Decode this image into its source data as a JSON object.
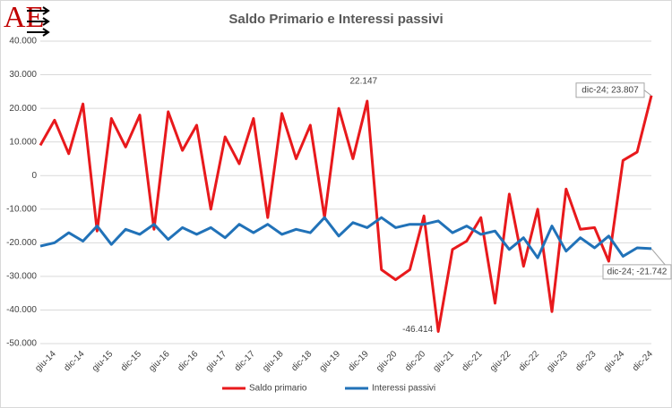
{
  "chart_data": {
    "type": "line",
    "title": "Saldo Primario e Interessi passivi",
    "logo": "AE",
    "categories": [
      null,
      "giu-14",
      null,
      "dic-14",
      null,
      "giu-15",
      null,
      "dic-15",
      null,
      "giu-16",
      null,
      "dic-16",
      null,
      "giu-17",
      null,
      "dic-17",
      null,
      "giu-18",
      null,
      "dic-18",
      null,
      "giu-19",
      null,
      "dic-19",
      null,
      "giu-20",
      null,
      "dic-20",
      null,
      "giu-21",
      null,
      "dic-21",
      null,
      "giu-22",
      null,
      "dic-22",
      null,
      "giu-23",
      null,
      "dic-23",
      null,
      "giu-24",
      null,
      "dic-24"
    ],
    "series": [
      {
        "name": "Saldo primario",
        "color": "#e8191c",
        "values": [
          9000,
          16500,
          6500,
          21300,
          -16500,
          17000,
          8500,
          18000,
          -16000,
          19000,
          7500,
          15000,
          -10000,
          11500,
          3500,
          17000,
          -12500,
          18500,
          5000,
          15000,
          -12500,
          20000,
          5000,
          22147,
          -28000,
          -31000,
          -28000,
          -12000,
          -46414,
          -22000,
          -19500,
          -12500,
          -38000,
          -5500,
          -27000,
          -10000,
          -40500,
          -4000,
          -16000,
          -15500,
          -25500,
          4500,
          7000,
          23807
        ],
        "value_labels": [
          null,
          null,
          null,
          null,
          null,
          null,
          null,
          null,
          null,
          null,
          null,
          null,
          null,
          null,
          null,
          null,
          null,
          null,
          null,
          null,
          null,
          null,
          null,
          "22.147",
          null,
          null,
          null,
          null,
          "-46.414",
          null,
          null,
          null,
          null,
          null,
          null,
          null,
          null,
          null,
          null,
          null,
          null,
          null,
          null,
          "dic-24; 23.807"
        ]
      },
      {
        "name": "Interessi passivi",
        "color": "#2172b8",
        "values": [
          -21000,
          -20000,
          -17000,
          -19500,
          -15000,
          -20500,
          -16000,
          -17500,
          -14500,
          -19000,
          -15500,
          -17500,
          -15500,
          -18500,
          -14500,
          -17000,
          -14500,
          -17500,
          -16000,
          -17000,
          -12500,
          -18000,
          -14000,
          -15500,
          -12500,
          -15500,
          -14500,
          -14500,
          -13500,
          -17000,
          -15000,
          -17500,
          -16500,
          -22000,
          -18500,
          -24500,
          -15000,
          -22500,
          -18500,
          -21500,
          -18000,
          -24000,
          -21500,
          -21742
        ],
        "value_labels": [
          null,
          null,
          null,
          null,
          null,
          null,
          null,
          null,
          null,
          null,
          null,
          null,
          null,
          null,
          null,
          null,
          null,
          null,
          null,
          null,
          null,
          null,
          null,
          null,
          null,
          null,
          null,
          null,
          null,
          null,
          null,
          null,
          null,
          null,
          null,
          null,
          null,
          null,
          null,
          null,
          null,
          null,
          null,
          "dic-24; -21.742"
        ]
      }
    ],
    "ylim": [
      -50000,
      40000
    ],
    "yticks": [
      {
        "value": -50000,
        "label": "-50.000"
      },
      {
        "value": -40000,
        "label": "-40.000"
      },
      {
        "value": -30000,
        "label": "-30.000"
      },
      {
        "value": -20000,
        "label": "-20.000"
      },
      {
        "value": -10000,
        "label": "-10.000"
      },
      0,
      {
        "value": 10000,
        "label": "10.000"
      },
      {
        "value": 20000,
        "label": "20.000"
      },
      {
        "value": 30000,
        "label": "30.000"
      },
      {
        "value": 40000,
        "label": "40.000"
      }
    ],
    "grid": true,
    "legend": "bottom"
  }
}
